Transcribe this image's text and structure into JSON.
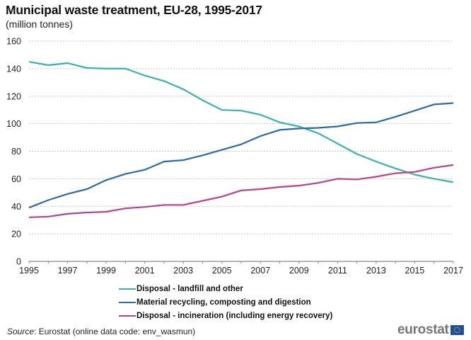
{
  "chart_data": {
    "type": "line",
    "title": "Municipal waste treatment, EU-28, 1995-2017",
    "subtitle": "(million tonnes)",
    "xlabel": "",
    "ylabel": "",
    "ylim": [
      0,
      160
    ],
    "yticks": [
      0,
      20,
      40,
      60,
      80,
      100,
      120,
      140,
      160
    ],
    "xticks_labels": [
      "1995",
      "1997",
      "1999",
      "2001",
      "2003",
      "2005",
      "2007",
      "2009",
      "2011",
      "2013",
      "2015",
      "2017"
    ],
    "x": [
      1995,
      1996,
      1997,
      1998,
      1999,
      2000,
      2001,
      2002,
      2003,
      2004,
      2005,
      2006,
      2007,
      2008,
      2009,
      2010,
      2011,
      2012,
      2013,
      2014,
      2015,
      2016,
      2017
    ],
    "grid": true,
    "legend_position": "bottom",
    "series": [
      {
        "name": "Disposal - landfill and other",
        "color": "#3ab0b0",
        "values": [
          145,
          142.5,
          144,
          140.5,
          140,
          140,
          135,
          131,
          125,
          117,
          110,
          109.5,
          106.5,
          101,
          98,
          93,
          85.5,
          78,
          72.5,
          67.5,
          63,
          60,
          57.5
        ]
      },
      {
        "name": "Material recycling, composting and digestion",
        "color": "#2f6aa8",
        "values": [
          39,
          44.5,
          49,
          52.5,
          59,
          63.5,
          66.5,
          72.5,
          73.5,
          77,
          81,
          85,
          91,
          95.5,
          96.5,
          97,
          98,
          100.5,
          101,
          105,
          109.5,
          114,
          115
        ]
      },
      {
        "name": "Disposal - incineration (including energy recovery)",
        "color": "#b8428e",
        "values": [
          32,
          32.5,
          34.5,
          35.5,
          36,
          38.5,
          39.5,
          41,
          41,
          44,
          47,
          51.5,
          52.5,
          54,
          55,
          57,
          60,
          59.5,
          61.5,
          64,
          65,
          68,
          70
        ]
      }
    ]
  },
  "footer": {
    "source_label": "Source",
    "source_text": ": Eurostat (online data code: env_wasmun)",
    "logo_text": "eurostat"
  }
}
